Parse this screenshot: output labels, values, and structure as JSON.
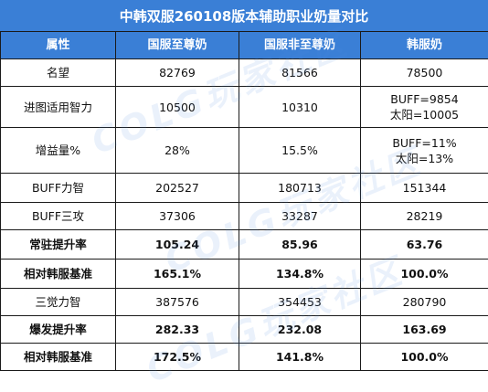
{
  "title": "中韩双服260108版本辅助职业奶量对比",
  "columns": [
    "属性",
    "国服至尊奶",
    "国服非至尊奶",
    "韩服奶"
  ],
  "rows": [
    {
      "label": "名望",
      "cn_supreme": "82769",
      "cn_nonsupreme": "81566",
      "kr": [
        "78500"
      ],
      "bold": false
    },
    {
      "label": "进图适用智力",
      "cn_supreme": "10500",
      "cn_nonsupreme": "10310",
      "kr": [
        "BUFF=9854",
        "太阳=10005"
      ],
      "bold": false
    },
    {
      "label": "增益量%",
      "cn_supreme": "28%",
      "cn_nonsupreme": "15.5%",
      "kr": [
        "BUFF=11%",
        "太阳=13%"
      ],
      "bold": false
    },
    {
      "label": "BUFF力智",
      "cn_supreme": "202527",
      "cn_nonsupreme": "180713",
      "kr": [
        "151344"
      ],
      "bold": false
    },
    {
      "label": "BUFF三攻",
      "cn_supreme": "37306",
      "cn_nonsupreme": "33287",
      "kr": [
        "28219"
      ],
      "bold": false
    },
    {
      "label": "常驻提升率",
      "cn_supreme": "105.24",
      "cn_nonsupreme": "85.96",
      "kr": [
        "63.76"
      ],
      "bold": true
    },
    {
      "label": "相对韩服基准",
      "cn_supreme": "165.1%",
      "cn_nonsupreme": "134.8%",
      "kr": [
        "100.0%"
      ],
      "bold": true
    },
    {
      "label": "三觉力智",
      "cn_supreme": "387576",
      "cn_nonsupreme": "354453",
      "kr": [
        "280790"
      ],
      "bold": false
    },
    {
      "label": "爆发提升率",
      "cn_supreme": "282.33",
      "cn_nonsupreme": "232.08",
      "kr": [
        "163.69"
      ],
      "bold": true
    },
    {
      "label": "相对韩服基准",
      "cn_supreme": "172.5%",
      "cn_nonsupreme": "141.8%",
      "kr": [
        "100.0%"
      ],
      "bold": true
    }
  ],
  "watermark": {
    "logo_text": "COLG玩家社区",
    "color": "#508cdc"
  },
  "colors": {
    "header_bg": "#3a7fd6",
    "header_text": "#ffffff",
    "border": "#1a1a1a"
  }
}
